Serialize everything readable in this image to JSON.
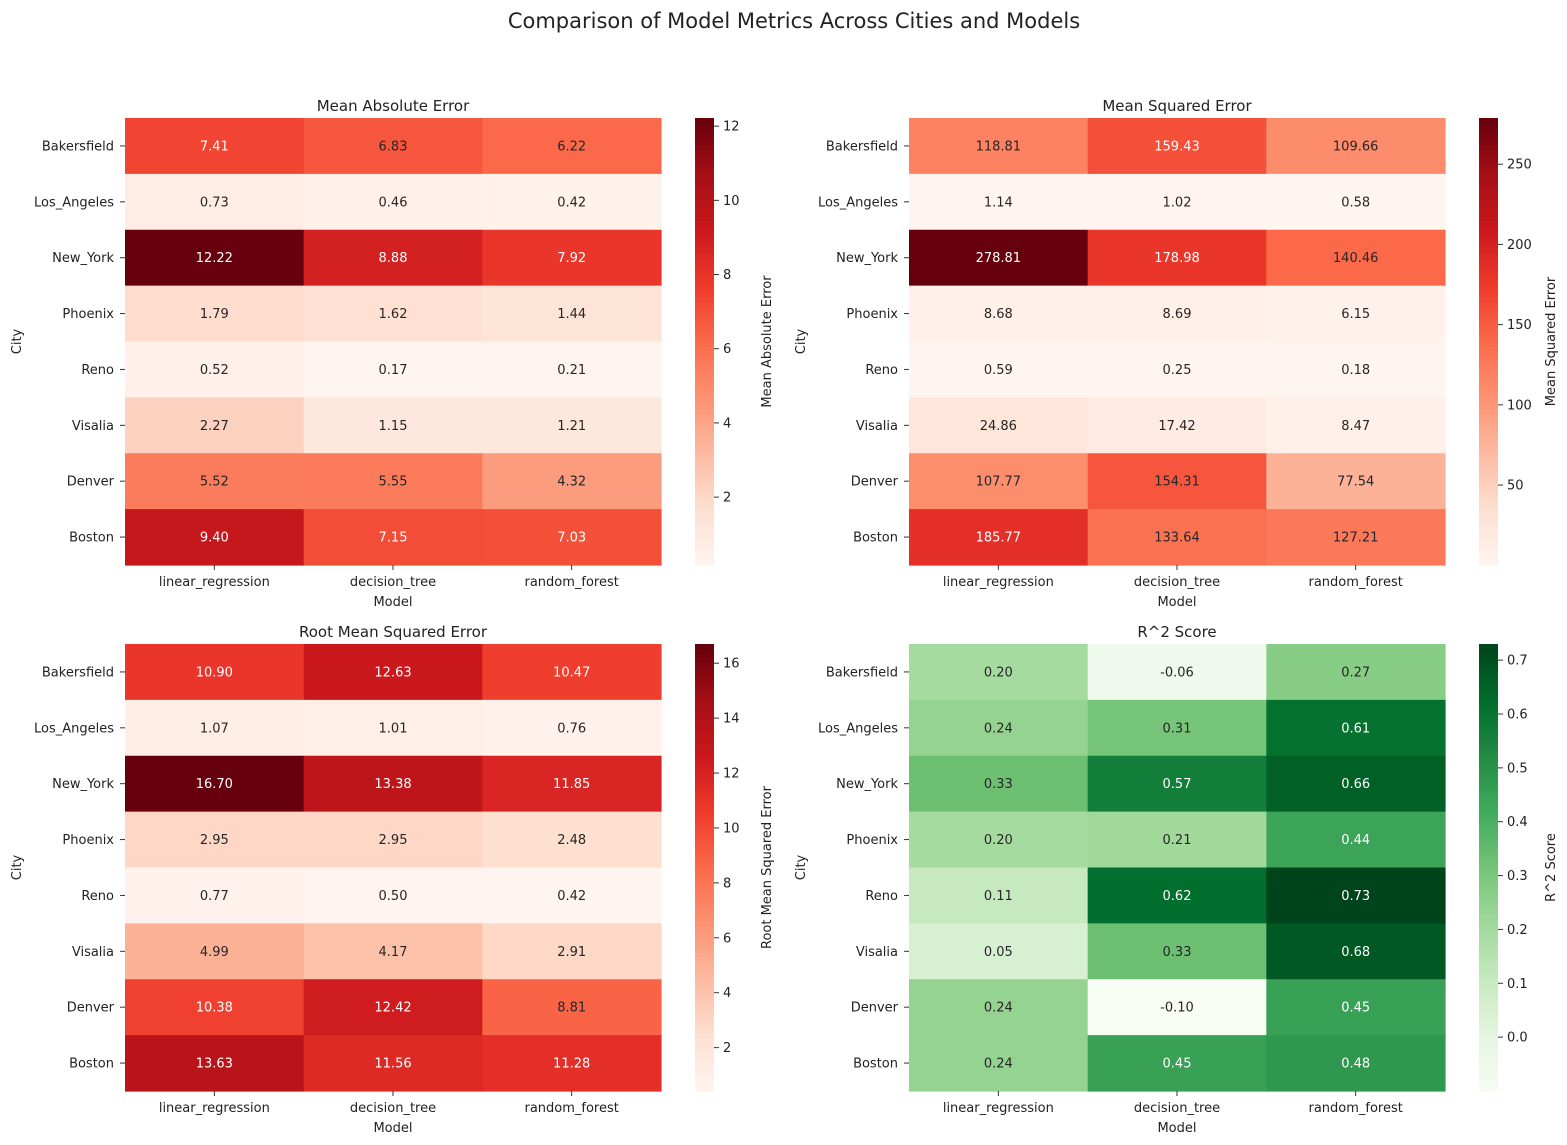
{
  "figure": {
    "title": "Comparison of Model Metrics Across Cities and Models"
  },
  "chart_data": [
    {
      "type": "heatmap",
      "title": "Mean Absolute Error",
      "xlabel": "Model",
      "ylabel": "City",
      "colorbar_label": "Mean Absolute Error",
      "colormap": "Reds",
      "vmin": 0.17,
      "vmax": 12.22,
      "colorbar_ticks": [
        2,
        4,
        6,
        8,
        10,
        12
      ],
      "x": [
        "linear_regression",
        "decision_tree",
        "random_forest"
      ],
      "y": [
        "Bakersfield",
        "Los_Angeles",
        "New_York",
        "Phoenix",
        "Reno",
        "Visalia",
        "Denver",
        "Boston"
      ],
      "values": [
        [
          7.41,
          6.83,
          6.22
        ],
        [
          0.73,
          0.46,
          0.42
        ],
        [
          12.22,
          8.88,
          7.92
        ],
        [
          1.79,
          1.62,
          1.44
        ],
        [
          0.52,
          0.17,
          0.21
        ],
        [
          2.27,
          1.15,
          1.21
        ],
        [
          5.52,
          5.55,
          4.32
        ],
        [
          9.4,
          7.15,
          7.03
        ]
      ]
    },
    {
      "type": "heatmap",
      "title": "Mean Squared Error",
      "xlabel": "Model",
      "ylabel": "City",
      "colorbar_label": "Mean Squared Error",
      "colormap": "Reds",
      "vmin": 0.18,
      "vmax": 278.81,
      "colorbar_ticks": [
        50,
        100,
        150,
        200,
        250
      ],
      "x": [
        "linear_regression",
        "decision_tree",
        "random_forest"
      ],
      "y": [
        "Bakersfield",
        "Los_Angeles",
        "New_York",
        "Phoenix",
        "Reno",
        "Visalia",
        "Denver",
        "Boston"
      ],
      "values": [
        [
          118.81,
          159.43,
          109.66
        ],
        [
          1.14,
          1.02,
          0.58
        ],
        [
          278.81,
          178.98,
          140.46
        ],
        [
          8.68,
          8.69,
          6.15
        ],
        [
          0.59,
          0.25,
          0.18
        ],
        [
          24.86,
          17.42,
          8.47
        ],
        [
          107.77,
          154.31,
          77.54
        ],
        [
          185.77,
          133.64,
          127.21
        ]
      ]
    },
    {
      "type": "heatmap",
      "title": "Root Mean Squared Error",
      "xlabel": "Model",
      "ylabel": "City",
      "colorbar_label": "Root Mean Squared Error",
      "colormap": "Reds",
      "vmin": 0.42,
      "vmax": 16.7,
      "colorbar_ticks": [
        2,
        4,
        6,
        8,
        10,
        12,
        14,
        16
      ],
      "x": [
        "linear_regression",
        "decision_tree",
        "random_forest"
      ],
      "y": [
        "Bakersfield",
        "Los_Angeles",
        "New_York",
        "Phoenix",
        "Reno",
        "Visalia",
        "Denver",
        "Boston"
      ],
      "values": [
        [
          10.9,
          12.63,
          10.47
        ],
        [
          1.07,
          1.01,
          0.76
        ],
        [
          16.7,
          13.38,
          11.85
        ],
        [
          2.95,
          2.95,
          2.48
        ],
        [
          0.77,
          0.5,
          0.42
        ],
        [
          4.99,
          4.17,
          2.91
        ],
        [
          10.38,
          12.42,
          8.81
        ],
        [
          13.63,
          11.56,
          11.28
        ]
      ]
    },
    {
      "type": "heatmap",
      "title": "R^2 Score",
      "xlabel": "Model",
      "ylabel": "City",
      "colorbar_label": "R^2 Score",
      "colormap": "Greens",
      "vmin": -0.1,
      "vmax": 0.73,
      "colorbar_ticks": [
        0.0,
        0.1,
        0.2,
        0.3,
        0.4,
        0.5,
        0.6,
        0.7
      ],
      "x": [
        "linear_regression",
        "decision_tree",
        "random_forest"
      ],
      "y": [
        "Bakersfield",
        "Los_Angeles",
        "New_York",
        "Phoenix",
        "Reno",
        "Visalia",
        "Denver",
        "Boston"
      ],
      "values": [
        [
          0.2,
          -0.06,
          0.27
        ],
        [
          0.24,
          0.31,
          0.61
        ],
        [
          0.33,
          0.57,
          0.66
        ],
        [
          0.2,
          0.21,
          0.44
        ],
        [
          0.11,
          0.62,
          0.73
        ],
        [
          0.05,
          0.33,
          0.68
        ],
        [
          0.24,
          -0.1,
          0.45
        ],
        [
          0.24,
          0.45,
          0.48
        ]
      ]
    }
  ]
}
